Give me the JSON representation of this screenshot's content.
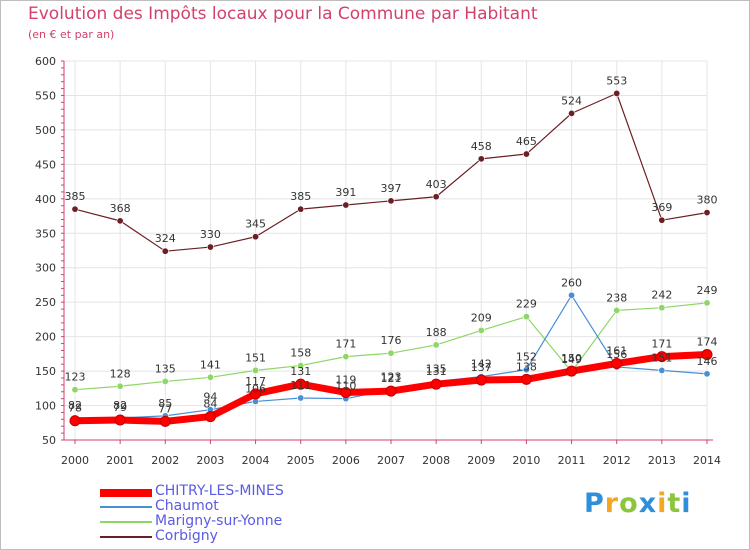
{
  "title": "Evolution des Impôts locaux pour la Commune par Habitant",
  "subtitle": "(en € et par an)",
  "logo": {
    "p": "P",
    "r": "r",
    "o": "o",
    "x": "x",
    "i1": "i",
    "t": "t",
    "i2": "i"
  },
  "chart_data": {
    "type": "line",
    "title": "Evolution des Impôts locaux pour la Commune par Habitant",
    "ylabel": "(en € et par an)",
    "ylim": [
      50,
      600
    ],
    "yticks": [
      50,
      100,
      150,
      200,
      250,
      300,
      350,
      400,
      450,
      500,
      550,
      600
    ],
    "x": [
      2000,
      2001,
      2002,
      2003,
      2004,
      2005,
      2006,
      2007,
      2008,
      2009,
      2010,
      2011,
      2012,
      2013,
      2014
    ],
    "series": [
      {
        "name": "Corbigny",
        "color": "#6b1f24",
        "values": [
          385,
          368,
          324,
          330,
          345,
          385,
          391,
          397,
          403,
          458,
          465,
          524,
          553,
          369,
          380
        ]
      },
      {
        "name": "Marigny-sur-Yonne",
        "color": "#8ed666",
        "values": [
          123,
          128,
          135,
          141,
          151,
          158,
          171,
          176,
          188,
          209,
          229,
          149,
          238,
          242,
          249
        ]
      },
      {
        "name": "Chaumot",
        "color": "#4a8fd4",
        "values": [
          82,
          82,
          85,
          94,
          106,
          111,
          110,
          123,
          135,
          142,
          152,
          260,
          156,
          151,
          146
        ]
      },
      {
        "name": "CHITRY-LES-MINES",
        "color": "#ff0000",
        "values": [
          78,
          79,
          77,
          84,
          117,
          131,
          119,
          121,
          131,
          137,
          138,
          150,
          161,
          171,
          174
        ]
      }
    ]
  }
}
